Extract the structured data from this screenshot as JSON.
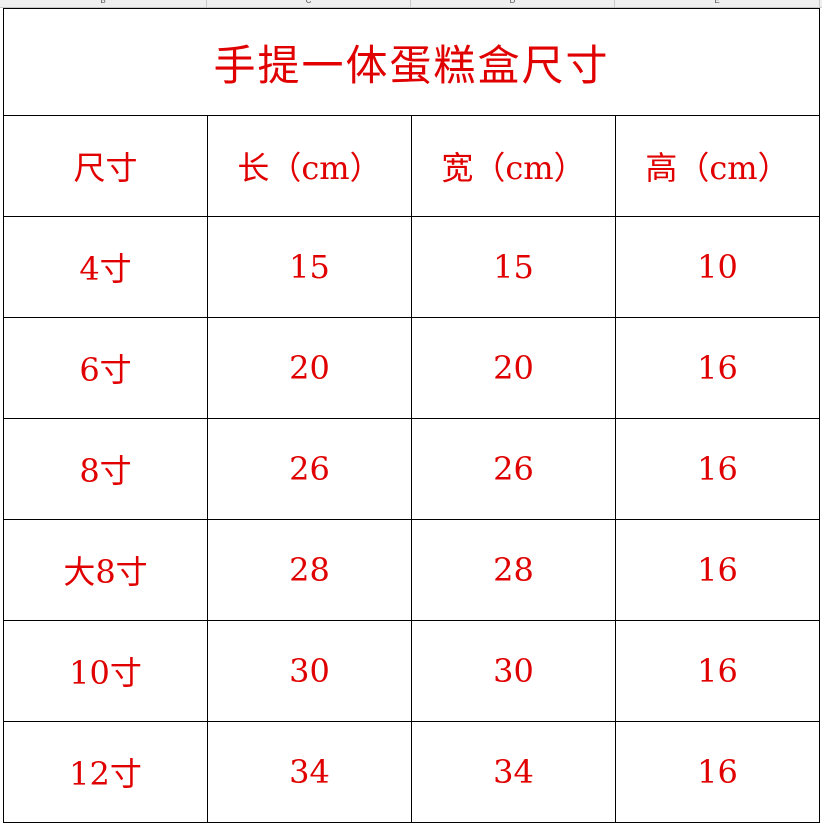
{
  "column_headers": [
    "B",
    "C",
    "D",
    "E"
  ],
  "title": "手提一体蛋糕盒尺寸",
  "headers": [
    "尺寸",
    "长（cm）",
    "宽（cm）",
    "高（cm）"
  ],
  "rows": [
    [
      "4寸",
      "15",
      "15",
      "10"
    ],
    [
      "6寸",
      "20",
      "20",
      "16"
    ],
    [
      "8寸",
      "26",
      "26",
      "16"
    ],
    [
      "大8寸",
      "28",
      "28",
      "16"
    ],
    [
      "10寸",
      "30",
      "30",
      "16"
    ],
    [
      "12寸",
      "34",
      "34",
      "16"
    ]
  ],
  "colors": {
    "text": "#e00000",
    "grid": "#000000"
  }
}
